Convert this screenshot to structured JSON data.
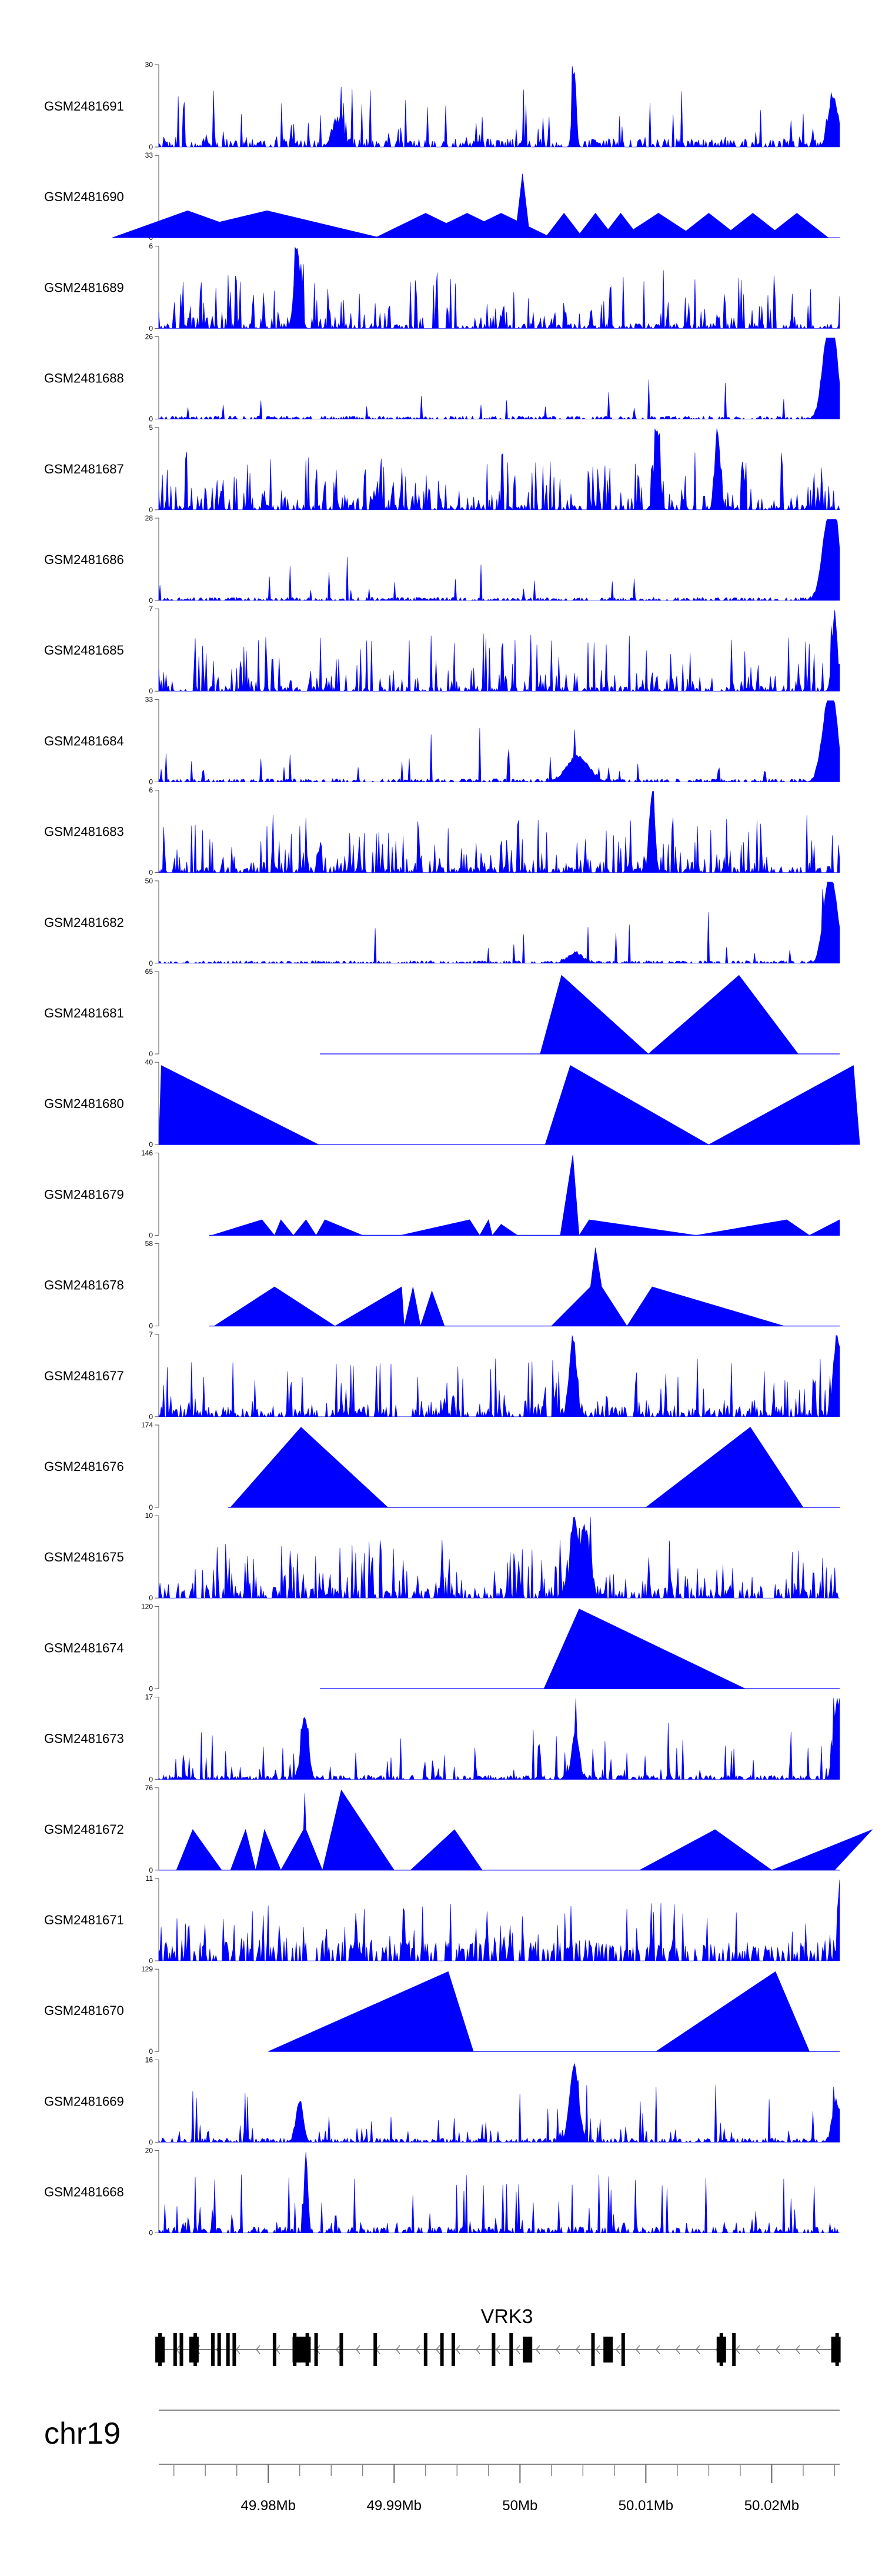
{
  "chart_data": {
    "type": "area",
    "title": "",
    "chromosome": "chr19",
    "gene": "VRK3",
    "xlim": [
      49.9713,
      50.0254
    ],
    "axis_ticks": [
      "49.98Mb",
      "49.99Mb",
      "50Mb",
      "50.01Mb",
      "50.02Mb"
    ],
    "axis_tick_values": [
      49.98,
      49.99,
      50.0,
      50.01,
      50.02
    ],
    "color": "#0000ff",
    "tracks": [
      {
        "name": "GSM2481691",
        "ymax": 30,
        "ymax_label": "30",
        "ymin_label": "0",
        "style": "dense",
        "seed": 11,
        "base": 0.08,
        "spiky": 0.18,
        "start": 49.9713,
        "end": 50.0254,
        "peaks": [
          [
            50.0043,
            28.5,
            0.00022
          ],
          [
            49.9855,
            9,
            0.0006
          ],
          [
            50.0248,
            13,
            0.0005
          ],
          [
            50.025,
            6,
            0.0005
          ]
        ]
      },
      {
        "name": "GSM2481690",
        "ymax": 33,
        "ymax_label": "33",
        "ymin_label": "0",
        "style": "sparse",
        "seed": 22,
        "start": 49.9713,
        "end": 50.0254,
        "peaks": [
          [
            49.9736,
            11,
            0.006
          ],
          [
            49.9799,
            11,
            0.009
          ],
          [
            49.9925,
            10,
            0.004
          ],
          [
            49.9958,
            10,
            0.004
          ],
          [
            49.9985,
            10,
            0.004
          ],
          [
            50.0002,
            26,
            0.0006
          ],
          [
            50.0035,
            10,
            0.0015
          ],
          [
            50.006,
            10,
            0.0015
          ],
          [
            50.008,
            10,
            0.0015
          ],
          [
            50.011,
            10,
            0.003
          ],
          [
            50.015,
            10,
            0.0025
          ],
          [
            50.0185,
            10,
            0.0025
          ],
          [
            50.022,
            10,
            0.0025
          ]
        ]
      },
      {
        "name": "GSM2481689",
        "ymax": 6,
        "ymax_label": "6",
        "ymin_label": "0",
        "style": "dense",
        "seed": 33,
        "base": 0.05,
        "spiky": 0.45,
        "start": 49.9713,
        "end": 50.0254,
        "peaks": [
          [
            49.9823,
            5.8,
            0.00035
          ]
        ]
      },
      {
        "name": "GSM2481688",
        "ymax": 26,
        "ymax_label": "26",
        "ymin_label": "0",
        "style": "dense",
        "seed": 44,
        "base": 0.03,
        "spiky": 0.05,
        "start": 49.9713,
        "end": 50.0254,
        "peaks": [
          [
            50.0244,
            24,
            0.0006
          ],
          [
            50.025,
            18,
            0.0005
          ]
        ]
      },
      {
        "name": "GSM2481687",
        "ymax": 5,
        "ymax_label": "5",
        "ymin_label": "0",
        "style": "dense",
        "seed": 55,
        "base": 0.05,
        "spiky": 0.55,
        "start": 49.9713,
        "end": 50.0254,
        "peaks": [
          [
            50.0109,
            4.9,
            0.0003
          ],
          [
            50.0157,
            4.7,
            0.0003
          ]
        ]
      },
      {
        "name": "GSM2481686",
        "ymax": 28,
        "ymax_label": "28",
        "ymin_label": "0",
        "style": "dense",
        "seed": 66,
        "base": 0.03,
        "spiky": 0.05,
        "start": 49.9713,
        "end": 50.0254,
        "peaks": [
          [
            50.0245,
            27,
            0.0007
          ],
          [
            50.0251,
            18,
            0.0005
          ]
        ]
      },
      {
        "name": "GSM2481685",
        "ymax": 7,
        "ymax_label": "7",
        "ymin_label": "0",
        "style": "dense",
        "seed": 77,
        "base": 0.05,
        "spiky": 0.45,
        "start": 49.9713,
        "end": 50.0254,
        "peaks": [
          [
            50.025,
            6.5,
            0.0003
          ]
        ]
      },
      {
        "name": "GSM2481684",
        "ymax": 33,
        "ymax_label": "33",
        "ymin_label": "0",
        "style": "dense",
        "seed": 88,
        "base": 0.03,
        "spiky": 0.06,
        "start": 49.9713,
        "end": 50.0254,
        "peaks": [
          [
            50.0046,
            10,
            0.0012
          ],
          [
            50.0245,
            31,
            0.0007
          ],
          [
            50.025,
            14,
            0.0005
          ]
        ]
      },
      {
        "name": "GSM2481683",
        "ymax": 6,
        "ymax_label": "6",
        "ymin_label": "0",
        "style": "dense",
        "seed": 99,
        "base": 0.06,
        "spiky": 0.45,
        "start": 49.9713,
        "end": 50.0254,
        "peaks": [
          [
            50.0105,
            5.8,
            0.0003
          ]
        ]
      },
      {
        "name": "GSM2481682",
        "ymax": 50,
        "ymax_label": "50",
        "ymin_label": "0",
        "style": "dense",
        "seed": 110,
        "base": 0.025,
        "spiky": 0.05,
        "start": 49.9713,
        "end": 50.0254,
        "peaks": [
          [
            50.0044,
            6,
            0.0008
          ],
          [
            50.0245,
            47,
            0.0006
          ],
          [
            50.0251,
            22,
            0.0005
          ]
        ]
      },
      {
        "name": "GSM2481681",
        "ymax": 65,
        "ymax_label": "65",
        "ymin_label": "0",
        "style": "tri",
        "start": 49.9841,
        "end": 50.0254,
        "peaks": [
          [
            50.0016,
            0
          ],
          [
            50.0033,
            63
          ],
          [
            50.0102,
            0
          ],
          [
            50.0174,
            63
          ],
          [
            50.0221,
            0
          ]
        ]
      },
      {
        "name": "GSM2481680",
        "ymax": 40,
        "ymax_label": "40",
        "ymin_label": "0",
        "style": "tri",
        "start": 49.9713,
        "end": 50.0254,
        "peaks": [
          [
            49.9713,
            0
          ],
          [
            49.9715,
            39
          ],
          [
            49.984,
            0
          ],
          [
            50.002,
            0
          ],
          [
            50.004,
            39
          ],
          [
            50.015,
            0
          ],
          [
            50.0265,
            39
          ],
          [
            50.027,
            0
          ]
        ]
      },
      {
        "name": "GSM2481679",
        "ymax": 146,
        "ymax_label": "146",
        "ymin_label": "0",
        "style": "tri",
        "start": 49.9753,
        "end": 50.0254,
        "peaks": [
          [
            49.9755,
            0
          ],
          [
            49.9795,
            28
          ],
          [
            49.9805,
            0
          ],
          [
            49.981,
            28
          ],
          [
            49.982,
            0
          ],
          [
            49.983,
            28
          ],
          [
            49.9838,
            0
          ],
          [
            49.9845,
            28
          ],
          [
            49.9875,
            0
          ],
          [
            49.9905,
            0
          ],
          [
            49.996,
            28
          ],
          [
            49.9968,
            0
          ],
          [
            49.9975,
            28
          ],
          [
            49.9978,
            0
          ],
          [
            49.9985,
            20
          ],
          [
            49.9998,
            0
          ],
          [
            50.0032,
            0
          ],
          [
            50.0042,
            145
          ],
          [
            50.0047,
            0
          ],
          [
            50.0055,
            28
          ],
          [
            50.014,
            0
          ],
          [
            50.0212,
            28
          ],
          [
            50.023,
            0
          ],
          [
            50.0254,
            28
          ]
        ]
      },
      {
        "name": "GSM2481678",
        "ymax": 58,
        "ymax_label": "58",
        "ymin_label": "0",
        "style": "tri",
        "start": 49.9753,
        "end": 50.0254,
        "peaks": [
          [
            49.9757,
            0
          ],
          [
            49.9805,
            28
          ],
          [
            49.9853,
            0
          ],
          [
            49.9906,
            28
          ],
          [
            49.9908,
            0
          ],
          [
            49.9915,
            28
          ],
          [
            49.9921,
            0
          ],
          [
            49.993,
            25
          ],
          [
            49.994,
            0
          ],
          [
            50.0025,
            0
          ],
          [
            50.0056,
            28
          ],
          [
            50.006,
            56
          ],
          [
            50.0065,
            28
          ],
          [
            50.0085,
            0
          ],
          [
            50.0105,
            28
          ],
          [
            50.021,
            0
          ]
        ]
      },
      {
        "name": "GSM2481677",
        "ymax": 7,
        "ymax_label": "7",
        "ymin_label": "0",
        "style": "dense",
        "seed": 121,
        "base": 0.08,
        "spiky": 0.35,
        "start": 49.9713,
        "end": 50.0254,
        "peaks": [
          [
            50.0042,
            6.6,
            0.0004
          ],
          [
            50.0252,
            6.8,
            0.0004
          ]
        ]
      },
      {
        "name": "GSM2481676",
        "ymax": 174,
        "ymax_label": "174",
        "ymin_label": "0",
        "style": "tri",
        "start": 49.9768,
        "end": 50.0254,
        "peaks": [
          [
            49.977,
            0
          ],
          [
            49.9826,
            172
          ],
          [
            49.9895,
            0
          ],
          [
            50.01,
            0
          ],
          [
            50.0183,
            172
          ],
          [
            50.0225,
            0
          ]
        ]
      },
      {
        "name": "GSM2481675",
        "ymax": 10,
        "ymax_label": "10",
        "ymin_label": "0",
        "style": "dense",
        "seed": 132,
        "base": 0.1,
        "spiky": 0.45,
        "start": 49.9713,
        "end": 50.0254,
        "peaks": [
          [
            50.0043,
            9.5,
            0.0004
          ],
          [
            50.0052,
            8,
            0.0005
          ]
        ]
      },
      {
        "name": "GSM2481674",
        "ymax": 120,
        "ymax_label": "120",
        "ymin_label": "0",
        "style": "tri",
        "start": 49.9841,
        "end": 50.0254,
        "peaks": [
          [
            50.0019,
            0
          ],
          [
            50.0047,
            118
          ],
          [
            50.0179,
            0
          ]
        ]
      },
      {
        "name": "GSM2481673",
        "ymax": 17,
        "ymax_label": "17",
        "ymin_label": "0",
        "style": "dense",
        "seed": 143,
        "base": 0.04,
        "spiky": 0.2,
        "start": 49.9713,
        "end": 50.0254,
        "peaks": [
          [
            49.9829,
            13,
            0.0004
          ],
          [
            50.0044,
            10,
            0.0004
          ],
          [
            50.0252,
            16,
            0.0004
          ]
        ]
      },
      {
        "name": "GSM2481672",
        "ymax": 76,
        "ymax_label": "76",
        "ymin_label": "0",
        "style": "tri",
        "start": 49.9713,
        "end": 50.0254,
        "peaks": [
          [
            49.9727,
            0
          ],
          [
            49.974,
            38
          ],
          [
            49.9763,
            0
          ],
          [
            49.977,
            0
          ],
          [
            49.9782,
            38
          ],
          [
            49.979,
            0
          ],
          [
            49.9797,
            38
          ],
          [
            49.981,
            0
          ],
          [
            49.9828,
            38
          ],
          [
            49.9829,
            72
          ],
          [
            49.983,
            38
          ],
          [
            49.9843,
            0
          ],
          [
            49.9858,
            75
          ],
          [
            49.99,
            0
          ],
          [
            49.9913,
            0
          ],
          [
            49.9948,
            38
          ],
          [
            49.997,
            0
          ],
          [
            50.0095,
            0
          ],
          [
            50.0155,
            38
          ],
          [
            50.02,
            0
          ],
          [
            50.028,
            38
          ],
          [
            50.025,
            0
          ]
        ]
      },
      {
        "name": "GSM2481671",
        "ymax": 11,
        "ymax_label": "11",
        "ymin_label": "0",
        "style": "dense",
        "seed": 154,
        "base": 0.2,
        "spiky": 0.35,
        "start": 49.9713,
        "end": 50.0254,
        "peaks": [
          [
            50.0254,
            10.8,
            0.0002
          ]
        ]
      },
      {
        "name": "GSM2481670",
        "ymax": 129,
        "ymax_label": "129",
        "ymin_label": "0",
        "style": "tri",
        "start": 49.9801,
        "end": 50.0254,
        "peaks": [
          [
            49.98,
            0
          ],
          [
            49.9943,
            127
          ],
          [
            49.9963,
            0
          ],
          [
            50.0108,
            0
          ],
          [
            50.0203,
            127
          ],
          [
            50.023,
            0
          ]
        ]
      },
      {
        "name": "GSM2481669",
        "ymax": 16,
        "ymax_label": "16",
        "ymin_label": "0",
        "style": "dense",
        "seed": 165,
        "base": 0.04,
        "spiky": 0.15,
        "start": 49.9713,
        "end": 50.0254,
        "peaks": [
          [
            49.9825,
            8,
            0.0004
          ],
          [
            50.0043,
            15,
            0.0005
          ],
          [
            50.0251,
            8,
            0.0004
          ]
        ]
      },
      {
        "name": "GSM2481668",
        "ymax": 20,
        "ymax_label": "20",
        "ymin_label": "0",
        "style": "dense",
        "seed": 176,
        "base": 0.06,
        "spiky": 0.2,
        "start": 49.9713,
        "end": 50.0254,
        "peaks": [
          [
            49.983,
            19,
            0.0002
          ]
        ]
      }
    ],
    "gene_exons": [
      49.9714,
      49.9726,
      49.9731,
      49.9742,
      49.9756,
      49.9761,
      49.9768,
      49.9773,
      49.9805,
      49.9821,
      49.9831,
      49.9838,
      49.9858,
      49.9885,
      49.9925,
      49.9938,
      49.9947,
      49.9979,
      49.9993,
      50.0058,
      50.0082,
      50.016,
      50.017,
      50.0252
    ],
    "gene_thick_exons": [
      49.9714,
      49.9741,
      49.9823,
      49.983,
      50.0006,
      50.007,
      50.016,
      50.0251
    ]
  }
}
